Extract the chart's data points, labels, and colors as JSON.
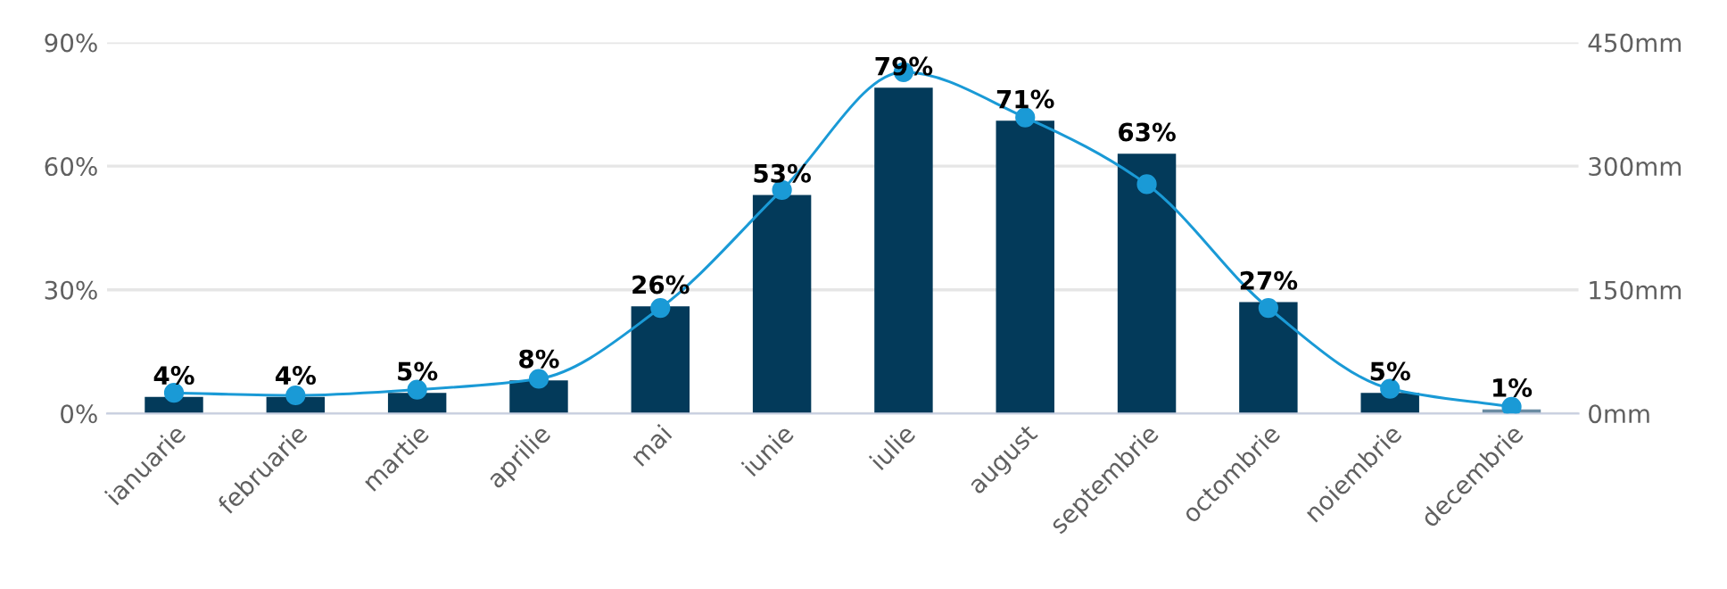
{
  "chart_data": {
    "type": "bar",
    "categories": [
      "ianuarie",
      "februarie",
      "martie",
      "aprilie",
      "mai",
      "iunie",
      "iulie",
      "august",
      "septembrie",
      "octombrie",
      "noiembrie",
      "decembrie"
    ],
    "series": [
      {
        "colors": [
          "#033a5a",
          "#033a5a",
          "#033a5a",
          "#033a5a",
          "#033a5a",
          "#033a5a",
          "#033a5a",
          "#033a5a",
          "#033a5a",
          "#033a5a",
          "#033a5a",
          "#6b8ca3"
        ],
        "values": [
          4,
          4,
          5,
          8,
          26,
          53,
          79,
          71,
          63,
          27,
          5,
          1
        ],
        "value_labels": [
          "4%",
          "4%",
          "5%",
          "8%",
          "26%",
          "53%",
          "79%",
          "71%",
          "63%",
          "27%",
          "5%",
          "1%"
        ]
      },
      {
        "type": "line",
        "axis": "y2",
        "color": "#1a9ad6",
        "marker": "circle",
        "line_style": "solid",
        "values": [
          25,
          22,
          29,
          42,
          128,
          271,
          414,
          359,
          278,
          128,
          30,
          8
        ]
      }
    ],
    "ylim": [
      0,
      90
    ],
    "yticks": [
      {
        "value": 0,
        "label": "0%"
      },
      {
        "value": 30,
        "label": "30%"
      },
      {
        "value": 60,
        "label": "60%"
      },
      {
        "value": 90,
        "label": "90%"
      }
    ],
    "y2lim": [
      0,
      450
    ],
    "y2ticks": [
      {
        "value": 0,
        "label": "0mm"
      },
      {
        "value": 150,
        "label": "150mm"
      },
      {
        "value": 300,
        "label": "300mm"
      },
      {
        "value": 450,
        "label": "450mm"
      }
    ],
    "grid": "y",
    "legend": false
  }
}
